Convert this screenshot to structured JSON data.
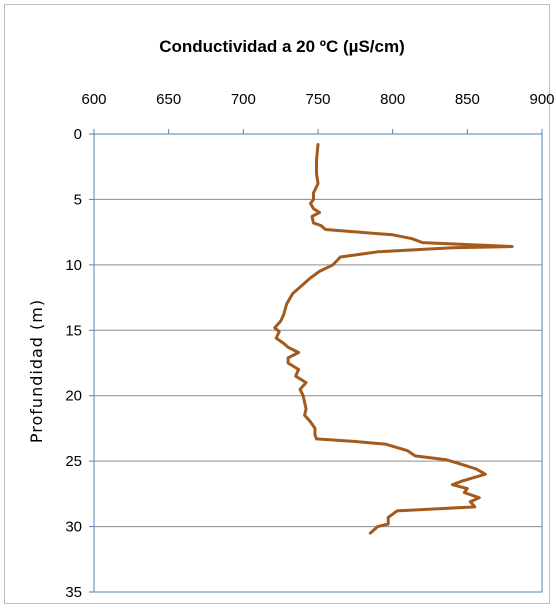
{
  "chart_data": {
    "type": "line",
    "title": "Conductividad  a  20 ºC (µS/cm)",
    "xlabel": "",
    "ylabel": "Profundidad  (m)",
    "xlim": [
      600,
      900
    ],
    "ylim": [
      0,
      35
    ],
    "x_axis_position": "top",
    "y_axis_inverted": true,
    "x_ticks": [
      "600",
      "650",
      "700",
      "750",
      "800",
      "850",
      "900"
    ],
    "y_ticks": [
      "0",
      "5",
      "10",
      "15",
      "20",
      "25",
      "30",
      "35"
    ],
    "grid": "horizontal",
    "legend": "none",
    "series": [
      {
        "color": "#a35a1c",
        "points": [
          {
            "x": 750,
            "y": 0.8
          },
          {
            "x": 749,
            "y": 2
          },
          {
            "x": 749,
            "y": 3
          },
          {
            "x": 750,
            "y": 3.8
          },
          {
            "x": 747,
            "y": 4.5
          },
          {
            "x": 747,
            "y": 5
          },
          {
            "x": 745,
            "y": 5.3
          },
          {
            "x": 747,
            "y": 5.7
          },
          {
            "x": 751,
            "y": 6
          },
          {
            "x": 746,
            "y": 6.3
          },
          {
            "x": 747,
            "y": 6.8
          },
          {
            "x": 752,
            "y": 7
          },
          {
            "x": 755,
            "y": 7.3
          },
          {
            "x": 800,
            "y": 7.7
          },
          {
            "x": 813,
            "y": 8
          },
          {
            "x": 820,
            "y": 8.3
          },
          {
            "x": 880,
            "y": 8.6
          },
          {
            "x": 840,
            "y": 8.7
          },
          {
            "x": 790,
            "y": 9
          },
          {
            "x": 765,
            "y": 9.4
          },
          {
            "x": 760,
            "y": 10
          },
          {
            "x": 751,
            "y": 10.5
          },
          {
            "x": 745,
            "y": 11
          },
          {
            "x": 737,
            "y": 11.8
          },
          {
            "x": 733,
            "y": 12.2
          },
          {
            "x": 729,
            "y": 13
          },
          {
            "x": 727,
            "y": 13.8
          },
          {
            "x": 725,
            "y": 14.3
          },
          {
            "x": 721,
            "y": 14.8
          },
          {
            "x": 724,
            "y": 15.1
          },
          {
            "x": 722,
            "y": 15.6
          },
          {
            "x": 727,
            "y": 16
          },
          {
            "x": 730,
            "y": 16.3
          },
          {
            "x": 737,
            "y": 16.7
          },
          {
            "x": 730,
            "y": 17.1
          },
          {
            "x": 730,
            "y": 17.5
          },
          {
            "x": 737,
            "y": 18
          },
          {
            "x": 735,
            "y": 18.5
          },
          {
            "x": 742,
            "y": 19
          },
          {
            "x": 738,
            "y": 19.5
          },
          {
            "x": 740,
            "y": 20
          },
          {
            "x": 741,
            "y": 20.5
          },
          {
            "x": 742,
            "y": 21
          },
          {
            "x": 741,
            "y": 21.5
          },
          {
            "x": 745,
            "y": 22
          },
          {
            "x": 748,
            "y": 22.5
          },
          {
            "x": 748,
            "y": 23
          },
          {
            "x": 749,
            "y": 23.3
          },
          {
            "x": 775,
            "y": 23.5
          },
          {
            "x": 795,
            "y": 23.7
          },
          {
            "x": 810,
            "y": 24.2
          },
          {
            "x": 815,
            "y": 24.6
          },
          {
            "x": 836,
            "y": 24.9
          },
          {
            "x": 845,
            "y": 25.2
          },
          {
            "x": 856,
            "y": 25.6
          },
          {
            "x": 862,
            "y": 26
          },
          {
            "x": 847,
            "y": 26.5
          },
          {
            "x": 840,
            "y": 26.8
          },
          {
            "x": 850,
            "y": 27.1
          },
          {
            "x": 848,
            "y": 27.4
          },
          {
            "x": 858,
            "y": 27.8
          },
          {
            "x": 852,
            "y": 28.1
          },
          {
            "x": 855,
            "y": 28.5
          },
          {
            "x": 803,
            "y": 28.8
          },
          {
            "x": 797,
            "y": 29.3
          },
          {
            "x": 797,
            "y": 29.8
          },
          {
            "x": 790,
            "y": 30
          },
          {
            "x": 785,
            "y": 30.5
          }
        ]
      }
    ]
  }
}
